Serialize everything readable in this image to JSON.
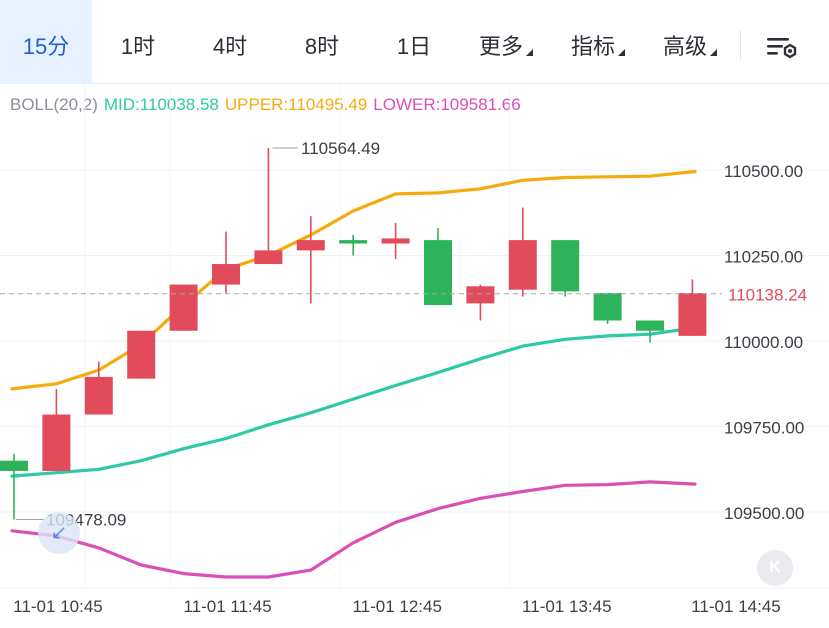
{
  "tabs": [
    {
      "label": "15分",
      "active": true
    },
    {
      "label": "1时",
      "active": false
    },
    {
      "label": "4时",
      "active": false
    },
    {
      "label": "8时",
      "active": false
    },
    {
      "label": "1日",
      "active": false
    },
    {
      "label": "更多",
      "active": false,
      "dropdown": true
    },
    {
      "label": "指标",
      "active": false,
      "dropdown": true
    },
    {
      "label": "高级",
      "active": false,
      "dropdown": true
    }
  ],
  "icons": {
    "settings": "chart-settings-icon",
    "reset": "reset-view-icon",
    "jump": "jump-arrow-icon"
  },
  "reset_label": "K",
  "boll": {
    "name": "BOLL(20,2)",
    "mid": "MID:110038.58",
    "upper": "UPPER:110495.49",
    "lower": "LOWER:109581.66"
  },
  "colors": {
    "up": "#e24b5a",
    "down": "#2db45a",
    "mid": "#2ec9a5",
    "upper": "#f5ab0e",
    "lower": "#d94fb5",
    "price_tag": "#e24b5a",
    "accent": "#1e5fd6"
  },
  "chart_data": {
    "type": "candlestick",
    "symbol_interval": "15分",
    "y_ticks": [
      110500,
      110250,
      110000,
      109750,
      109500
    ],
    "y_tick_labels": [
      "110500.00",
      "110250.00",
      "110000.00",
      "109750.00",
      "109500.00"
    ],
    "ylim": [
      109300,
      110700
    ],
    "x_tick_labels": [
      "11-01 10:45",
      "11-01 11:45",
      "11-01 12:45",
      "11-01 13:45",
      "11-01 14:45"
    ],
    "x_tick_index": [
      0,
      4,
      8,
      12,
      16
    ],
    "last_price": 110138.24,
    "last_price_label": "110138.24",
    "max_marker": {
      "index": 6,
      "value": 110564.49,
      "label": "110564.49"
    },
    "min_marker": {
      "index": 0,
      "value": 109478.09,
      "label": "109478.09"
    },
    "candles": [
      {
        "o": 109650,
        "h": 109670,
        "l": 109478.09,
        "c": 109620
      },
      {
        "o": 109620,
        "h": 109860,
        "l": 109620,
        "c": 109785
      },
      {
        "o": 109785,
        "h": 109940,
        "l": 109785,
        "c": 109895
      },
      {
        "o": 109890,
        "h": 110030,
        "l": 109890,
        "c": 110030
      },
      {
        "o": 110030,
        "h": 110160,
        "l": 110030,
        "c": 110165
      },
      {
        "o": 110165,
        "h": 110320,
        "l": 110140,
        "c": 110225
      },
      {
        "o": 110225,
        "h": 110564.49,
        "l": 110225,
        "c": 110265
      },
      {
        "o": 110265,
        "h": 110365,
        "l": 110110,
        "c": 110295
      },
      {
        "o": 110295,
        "h": 110310,
        "l": 110250,
        "c": 110285
      },
      {
        "o": 110285,
        "h": 110345,
        "l": 110240,
        "c": 110300
      },
      {
        "o": 110295,
        "h": 110330,
        "l": 110105,
        "c": 110105
      },
      {
        "o": 110110,
        "h": 110165,
        "l": 110060,
        "c": 110160
      },
      {
        "o": 110150,
        "h": 110390,
        "l": 110130,
        "c": 110295
      },
      {
        "o": 110295,
        "h": 110295,
        "l": 110130,
        "c": 110145
      },
      {
        "o": 110140,
        "h": 110140,
        "l": 110050,
        "c": 110060
      },
      {
        "o": 110060,
        "h": 110060,
        "l": 109995,
        "c": 110030
      },
      {
        "o": 110015,
        "h": 110180,
        "l": 110015,
        "c": 110140
      }
    ],
    "series": [
      {
        "name": "UPPER",
        "values": [
          109860,
          109875,
          109915,
          109990,
          110105,
          110210,
          110250,
          110310,
          110380,
          110430,
          110433,
          110445,
          110470,
          110478,
          110480,
          110482,
          110495.49
        ]
      },
      {
        "name": "MID",
        "values": [
          109605,
          109615,
          109625,
          109650,
          109685,
          109715,
          109755,
          109790,
          109830,
          109870,
          109908,
          109948,
          109985,
          110005,
          110015,
          110020,
          110038.58
        ]
      },
      {
        "name": "LOWER",
        "values": [
          109445,
          109430,
          109395,
          109345,
          109320,
          109310,
          109310,
          109330,
          109410,
          109470,
          109510,
          109540,
          109560,
          109578,
          109580,
          109588,
          109581.66
        ]
      }
    ]
  }
}
